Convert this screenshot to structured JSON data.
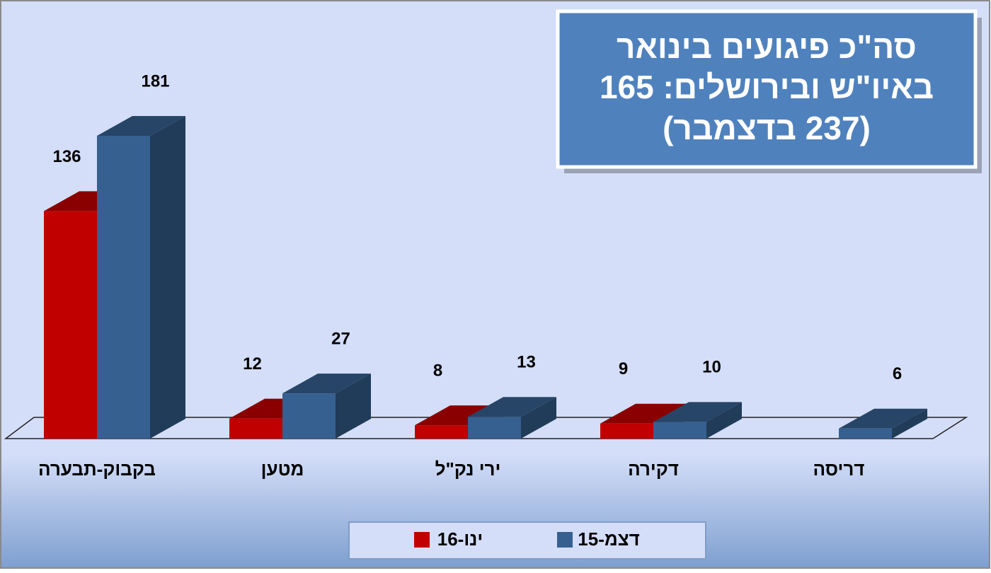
{
  "chart_data": {
    "type": "bar3d",
    "annotation": [
      "סה\"כ פיגועים בינואר",
      "באיו\"ש ובירושלים: 165",
      "(237 בדצמבר)"
    ],
    "categories": [
      "בקבוק-תבערה",
      "מטען",
      "ירי נק\"ל",
      "דקירה",
      "דריסה"
    ],
    "series": [
      {
        "name": "ינו-16",
        "color": "#c00000",
        "values": [
          136,
          12,
          8,
          9,
          null
        ]
      },
      {
        "name": "דצמ-15",
        "color": "#36608f",
        "values": [
          181,
          27,
          13,
          10,
          6
        ]
      }
    ]
  }
}
